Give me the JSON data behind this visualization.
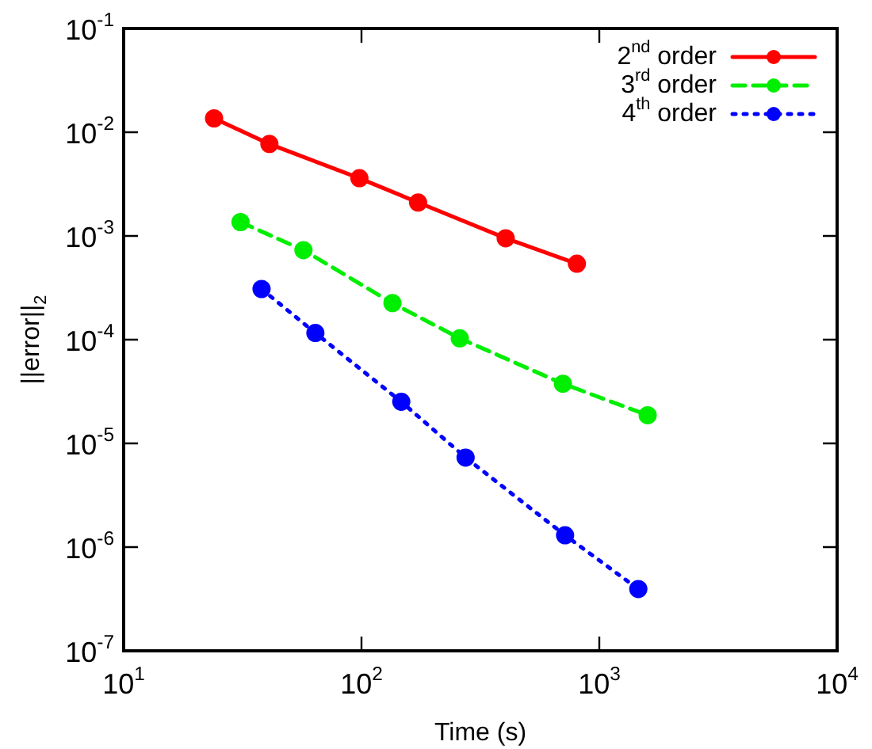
{
  "chart_data": {
    "type": "line",
    "xlabel": "Time (s)",
    "ylabel": "||error||$_{2}$",
    "log": "xy",
    "grid": false,
    "legend": "top right",
    "marker": "circle",
    "xlim": [
      10,
      10000
    ],
    "xticks": [
      {
        "value": 10,
        "label": "10$^{1}$"
      },
      {
        "value": 100,
        "label": "10$^{2}$"
      },
      {
        "value": 1000,
        "label": "10$^{3}$"
      },
      {
        "value": 10000,
        "label": "10$^{4}$"
      }
    ],
    "ylim": [
      1e-07,
      0.1
    ],
    "yticks": [
      {
        "value": 1e-07,
        "label": "10$^{-7}$"
      },
      {
        "value": 1e-06,
        "label": "10$^{-6}$"
      },
      {
        "value": 1e-05,
        "label": "10$^{-5}$"
      },
      {
        "value": 0.0001,
        "label": "10$^{-4}$"
      },
      {
        "value": 0.001,
        "label": "10$^{-3}$"
      },
      {
        "value": 0.01,
        "label": "10$^{-2}$"
      },
      {
        "value": 0.1,
        "label": "10$^{-1}$"
      }
    ],
    "series": [
      {
        "name": "2$^{nd}$ order",
        "color": "#ff0000",
        "line_style": "solid",
        "x": [
          24,
          41,
          98,
          173,
          404,
          805
        ],
        "values": [
          0.0136,
          0.0077,
          0.0036,
          0.0021,
          0.00095,
          0.00054
        ]
      },
      {
        "name": "3$^{rd}$ order",
        "color": "#00ee00",
        "line_style": "dashed",
        "x": [
          31,
          57,
          135,
          259,
          703,
          1597
        ],
        "values": [
          0.00136,
          0.00073,
          0.000225,
          0.000103,
          3.76e-05,
          1.87e-05
        ]
      },
      {
        "name": "4$^{th}$ order",
        "color": "#0000ff",
        "line_style": "dotted",
        "x": [
          38,
          64,
          147,
          274,
          718,
          1459
        ],
        "values": [
          0.000308,
          0.000116,
          2.52e-05,
          7.3e-06,
          1.3e-06,
          3.94e-07
        ]
      }
    ]
  }
}
